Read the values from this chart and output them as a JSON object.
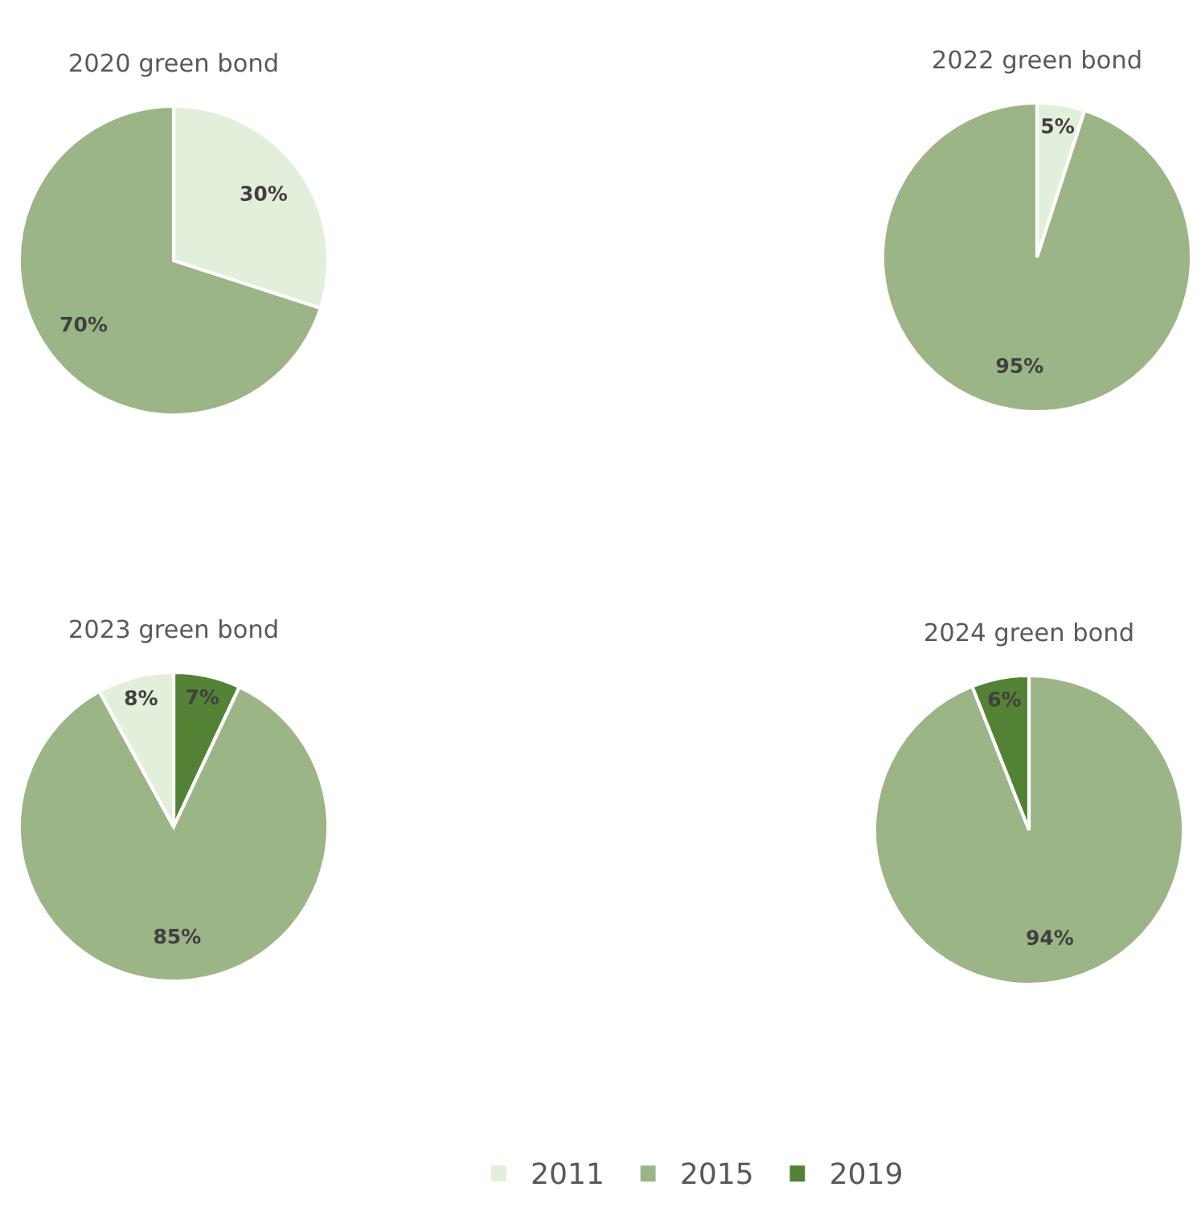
{
  "chart_data": [
    {
      "type": "pie",
      "title": "2020 green bond",
      "categories": [
        null,
        null
      ],
      "values": [
        30,
        70
      ],
      "colors": [
        "#e2efda",
        "#9bb586"
      ],
      "value_labels": [
        "30%",
        "70%"
      ]
    },
    {
      "type": "pie",
      "title": "2022 green bond",
      "categories": [
        null,
        null
      ],
      "values": [
        5,
        95
      ],
      "colors": [
        "#e2efda",
        "#9bb586"
      ],
      "value_labels": [
        "5%",
        "95%"
      ]
    },
    {
      "type": "pie",
      "title": "2023 green bond",
      "categories": [
        "2019",
        "2015",
        "2011"
      ],
      "values": [
        7,
        85,
        8
      ],
      "colors": [
        "#548235",
        "#9bb586",
        "#e2efda"
      ],
      "value_labels": [
        "7%",
        "85%",
        "8%"
      ],
      "legend": "bottom"
    },
    {
      "type": "pie",
      "title": "2024 green bond",
      "categories": [
        null,
        null
      ],
      "values": [
        94,
        6
      ],
      "colors": [
        "#9bb586",
        "#548235"
      ],
      "value_labels": [
        "94%",
        "6%"
      ]
    }
  ]
}
